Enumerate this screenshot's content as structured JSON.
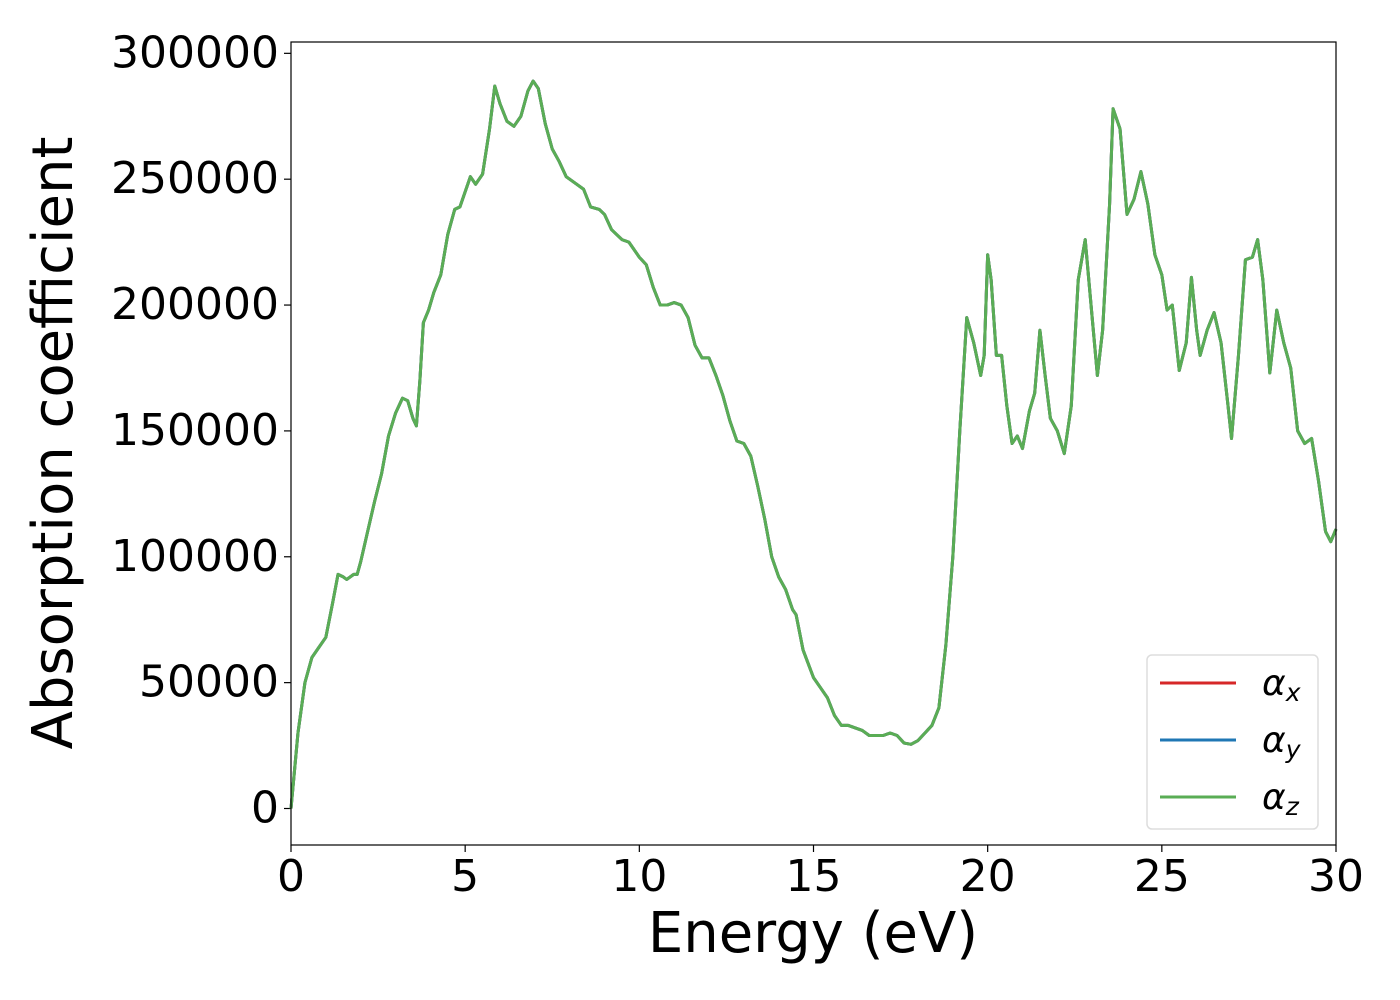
{
  "chart_data": {
    "type": "line",
    "xlabel": "Energy (eV)",
    "ylabel": "Absorption coefficient",
    "x": [
      0,
      0.2,
      0.4,
      0.6,
      0.8,
      1.0,
      1.2,
      1.35,
      1.5,
      1.6,
      1.8,
      1.9,
      2.0,
      2.2,
      2.4,
      2.6,
      2.8,
      3.0,
      3.2,
      3.35,
      3.5,
      3.6,
      3.7,
      3.8,
      3.95,
      4.1,
      4.3,
      4.5,
      4.7,
      4.85,
      5.0,
      5.15,
      5.3,
      5.5,
      5.7,
      5.85,
      6.0,
      6.2,
      6.4,
      6.6,
      6.8,
      6.95,
      7.1,
      7.3,
      7.5,
      7.7,
      7.9,
      8.2,
      8.4,
      8.6,
      8.85,
      9.0,
      9.2,
      9.5,
      9.7,
      10.0,
      10.2,
      10.4,
      10.6,
      10.8,
      11.0,
      11.2,
      11.4,
      11.6,
      11.8,
      12.0,
      12.2,
      12.4,
      12.6,
      12.8,
      13.0,
      13.2,
      13.4,
      13.6,
      13.8,
      14.0,
      14.2,
      14.4,
      14.5,
      14.7,
      15.0,
      15.2,
      15.4,
      15.6,
      15.8,
      16.0,
      16.2,
      16.4,
      16.6,
      16.8,
      17.0,
      17.2,
      17.4,
      17.6,
      17.8,
      18.0,
      18.2,
      18.4,
      18.6,
      18.8,
      19.0,
      19.2,
      19.4,
      19.6,
      19.8,
      19.9,
      20.0,
      20.1,
      20.25,
      20.4,
      20.55,
      20.7,
      20.85,
      21.0,
      21.2,
      21.35,
      21.5,
      21.65,
      21.8,
      22.0,
      22.2,
      22.4,
      22.6,
      22.8,
      23.0,
      23.15,
      23.3,
      23.5,
      23.6,
      23.8,
      24.0,
      24.2,
      24.4,
      24.6,
      24.8,
      25.0,
      25.15,
      25.3,
      25.5,
      25.7,
      25.85,
      26.0,
      26.1,
      26.3,
      26.5,
      26.7,
      26.9,
      27.0,
      27.2,
      27.4,
      27.6,
      27.75,
      27.9,
      28.1,
      28.3,
      28.5,
      28.7,
      28.9,
      29.1,
      29.3,
      29.5,
      29.7,
      29.85,
      30.0
    ],
    "series": [
      {
        "name": "αx",
        "color": "#d62728",
        "values": [
          0,
          30000,
          50000,
          60000,
          64000,
          68000,
          82000,
          93000,
          92000,
          91000,
          93000,
          93000,
          98000,
          110000,
          122000,
          133000,
          148000,
          157000,
          163000,
          162000,
          155000,
          152000,
          170000,
          193000,
          198000,
          205000,
          212000,
          228000,
          238000,
          239000,
          245000,
          251000,
          248000,
          252000,
          270000,
          287000,
          280000,
          273000,
          271000,
          275000,
          285000,
          289000,
          286000,
          272000,
          262000,
          257000,
          251000,
          248000,
          246000,
          239000,
          238000,
          236000,
          230000,
          226000,
          225000,
          219000,
          216000,
          207000,
          200000,
          200000,
          201000,
          200000,
          195000,
          184000,
          179000,
          179000,
          172000,
          164000,
          154000,
          146000,
          145000,
          140000,
          128000,
          115000,
          100000,
          92000,
          87000,
          79000,
          77000,
          63000,
          52000,
          48000,
          44000,
          37000,
          33000,
          33000,
          32000,
          31000,
          29000,
          29000,
          29000,
          30000,
          29000,
          26000,
          25500,
          27000,
          30000,
          33000,
          40000,
          65000,
          100000,
          150000,
          195000,
          185000,
          172000,
          180000,
          220000,
          210000,
          180000,
          180000,
          160000,
          145000,
          148000,
          143000,
          158000,
          165000,
          190000,
          172000,
          155000,
          150000,
          141000,
          160000,
          210000,
          226000,
          195000,
          172000,
          190000,
          240000,
          278000,
          270000,
          236000,
          242000,
          253000,
          240000,
          220000,
          212000,
          198000,
          200000,
          174000,
          185000,
          211000,
          190000,
          180000,
          190000,
          197000,
          185000,
          160000,
          147000,
          180000,
          218000,
          219000,
          226000,
          210000,
          173000,
          198000,
          185000,
          175000,
          150000,
          145000,
          147000,
          130000,
          110000,
          106000,
          111000
        ]
      },
      {
        "name": "αy",
        "color": "#1f77b4",
        "values": [
          0,
          30000,
          50000,
          60000,
          64000,
          68000,
          82000,
          93000,
          92000,
          91000,
          93000,
          93000,
          98000,
          110000,
          122000,
          133000,
          148000,
          157000,
          163000,
          162000,
          155000,
          152000,
          170000,
          193000,
          198000,
          205000,
          212000,
          228000,
          238000,
          239000,
          245000,
          251000,
          248000,
          252000,
          270000,
          287000,
          280000,
          273000,
          271000,
          275000,
          285000,
          289000,
          286000,
          272000,
          262000,
          257000,
          251000,
          248000,
          246000,
          239000,
          238000,
          236000,
          230000,
          226000,
          225000,
          219000,
          216000,
          207000,
          200000,
          200000,
          201000,
          200000,
          195000,
          184000,
          179000,
          179000,
          172000,
          164000,
          154000,
          146000,
          145000,
          140000,
          128000,
          115000,
          100000,
          92000,
          87000,
          79000,
          77000,
          63000,
          52000,
          48000,
          44000,
          37000,
          33000,
          33000,
          32000,
          31000,
          29000,
          29000,
          29000,
          30000,
          29000,
          26000,
          25500,
          27000,
          30000,
          33000,
          40000,
          65000,
          100000,
          150000,
          195000,
          185000,
          172000,
          180000,
          220000,
          210000,
          180000,
          180000,
          160000,
          145000,
          148000,
          143000,
          158000,
          165000,
          190000,
          172000,
          155000,
          150000,
          141000,
          160000,
          210000,
          226000,
          195000,
          172000,
          190000,
          240000,
          278000,
          270000,
          236000,
          242000,
          253000,
          240000,
          220000,
          212000,
          198000,
          200000,
          174000,
          185000,
          211000,
          190000,
          180000,
          190000,
          197000,
          185000,
          160000,
          147000,
          180000,
          218000,
          219000,
          226000,
          210000,
          173000,
          198000,
          185000,
          175000,
          150000,
          145000,
          147000,
          130000,
          110000,
          106000,
          111000
        ]
      },
      {
        "name": "αz",
        "color": "#5aad55",
        "values": [
          0,
          30000,
          50000,
          60000,
          64000,
          68000,
          82000,
          93000,
          92000,
          91000,
          93000,
          93000,
          98000,
          110000,
          122000,
          133000,
          148000,
          157000,
          163000,
          162000,
          155000,
          152000,
          170000,
          193000,
          198000,
          205000,
          212000,
          228000,
          238000,
          239000,
          245000,
          251000,
          248000,
          252000,
          270000,
          287000,
          280000,
          273000,
          271000,
          275000,
          285000,
          289000,
          286000,
          272000,
          262000,
          257000,
          251000,
          248000,
          246000,
          239000,
          238000,
          236000,
          230000,
          226000,
          225000,
          219000,
          216000,
          207000,
          200000,
          200000,
          201000,
          200000,
          195000,
          184000,
          179000,
          179000,
          172000,
          164000,
          154000,
          146000,
          145000,
          140000,
          128000,
          115000,
          100000,
          92000,
          87000,
          79000,
          77000,
          63000,
          52000,
          48000,
          44000,
          37000,
          33000,
          33000,
          32000,
          31000,
          29000,
          29000,
          29000,
          30000,
          29000,
          26000,
          25500,
          27000,
          30000,
          33000,
          40000,
          65000,
          100000,
          150000,
          195000,
          185000,
          172000,
          180000,
          220000,
          210000,
          180000,
          180000,
          160000,
          145000,
          148000,
          143000,
          158000,
          165000,
          190000,
          172000,
          155000,
          150000,
          141000,
          160000,
          210000,
          226000,
          195000,
          172000,
          190000,
          240000,
          278000,
          270000,
          236000,
          242000,
          253000,
          240000,
          220000,
          212000,
          198000,
          200000,
          174000,
          185000,
          211000,
          190000,
          180000,
          190000,
          197000,
          185000,
          160000,
          147000,
          180000,
          218000,
          219000,
          226000,
          210000,
          173000,
          198000,
          185000,
          175000,
          150000,
          145000,
          147000,
          130000,
          110000,
          106000,
          111000
        ]
      }
    ],
    "xlim": [
      0,
      30
    ],
    "xticks": [
      0,
      5,
      10,
      15,
      20,
      25,
      30
    ],
    "ylim": [
      -14500,
      304500
    ],
    "yticks": [
      0,
      50000,
      100000,
      150000,
      200000,
      250000,
      300000
    ],
    "grid": false,
    "legend": "lower right"
  }
}
